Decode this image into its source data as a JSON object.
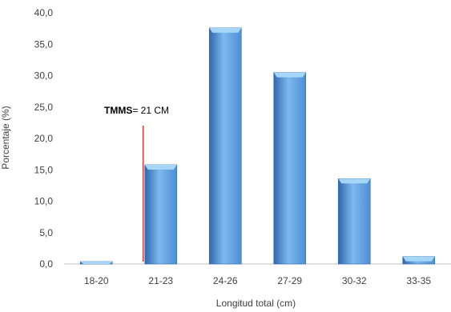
{
  "chart_data": {
    "type": "bar",
    "categories": [
      "18-20",
      "21-23",
      "24-26",
      "27-29",
      "30-32",
      "33-35"
    ],
    "values": [
      0.3,
      15.8,
      37.6,
      30.5,
      13.6,
      1.2
    ],
    "title": "",
    "xlabel": "Longitud total (cm)",
    "ylabel": "Porcentaje (%)",
    "ylim": [
      0,
      40
    ],
    "yticks": [
      "0,0",
      "5,0",
      "10,0",
      "15,0",
      "20,0",
      "25,0",
      "30,0",
      "35,0",
      "40,0"
    ],
    "grid": false,
    "legend": "none",
    "annotation": {
      "bold": "TMMS",
      "rest": "= 21 CM",
      "x_value": 21,
      "line_color": "#e0201b"
    },
    "colors": {
      "bar_dark": "#2f68ae",
      "bar_mid": "#4a8fd6",
      "bar_light": "#7fb8ee",
      "bar_top": "#a6d6f7",
      "axis": "#bfbfbf"
    }
  }
}
